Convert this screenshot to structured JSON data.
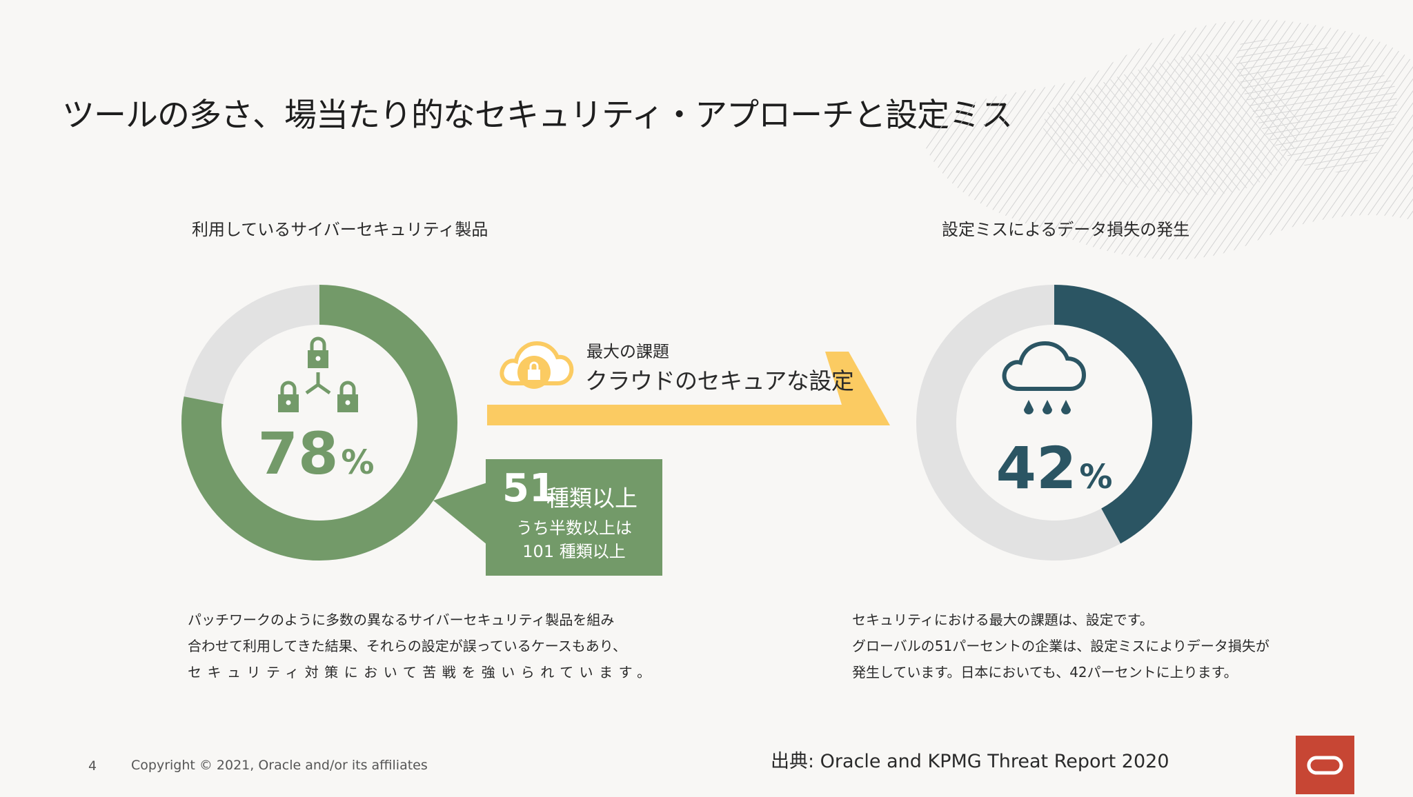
{
  "slide": {
    "title": "ツールの多さ、場当たり的なセキュリティ・アプローチと設定ミス",
    "page_number": "4",
    "copyright": "Copyright © 2021, Oracle and/or its affiliates",
    "source": "出典: Oracle and KPMG Threat Report 2020"
  },
  "left_stat": {
    "caption": "利用しているサイバーセキュリティ製品",
    "value_number": "78",
    "value_unit": "%",
    "percent": 78,
    "icon": "padlock-network-icon",
    "colors": {
      "fill": "#739a69",
      "track": "#e2e2e2"
    }
  },
  "banner": {
    "subtitle": "最大の課題",
    "title": "クラウドのセキュアな設定",
    "icon": "cloud-lock-icon",
    "color": "#fbcb62"
  },
  "callout": {
    "count": "51",
    "unit": "種類以上",
    "sub_line1": "うち半数以上は",
    "sub_line2": "101 種類以上",
    "color": "#739a69"
  },
  "right_stat": {
    "caption": "設定ミスによるデータ損失の発生",
    "value_number": "42",
    "value_unit": "%",
    "percent": 42,
    "icon": "rain-cloud-icon",
    "colors": {
      "fill": "#2b5563",
      "track": "#e2e2e2"
    }
  },
  "left_paragraph": {
    "line1": "パッチワークのように多数の異なるサイバーセキュリティ製品を組み",
    "line2": "合わせて利用してきた結果、それらの設定が誤っているケースもあり、",
    "line3": "セキュリティ対策において苦戦を強いられています。"
  },
  "right_paragraph": {
    "line1": "セキュリティにおける最大の課題は、設定です。",
    "line2": "グローバルの51パーセントの企業は、設定ミスによりデータ損失が",
    "line3": "発生しています。日本においても、42パーセントに上ります。"
  },
  "logo": {
    "name": "oracle-logo",
    "color": "#c74634"
  }
}
